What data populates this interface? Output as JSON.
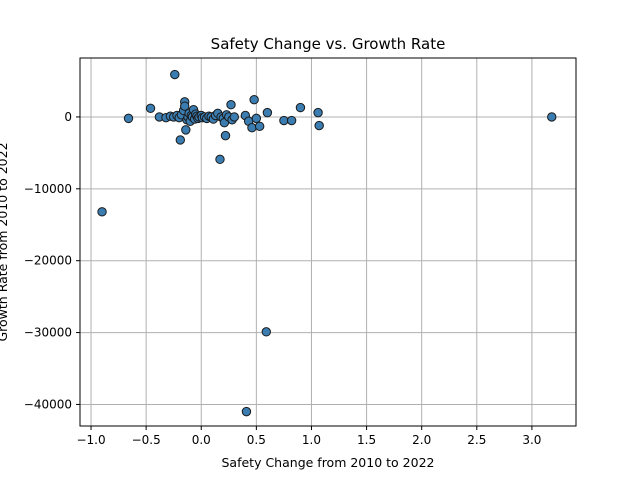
{
  "chart_data": {
    "type": "scatter",
    "title": "Safety Change vs. Growth Rate",
    "xlabel": "Safety Change from 2010 to 2022",
    "ylabel": "Growth Rate from 2010 to 2022",
    "xlim": [
      -1.1,
      3.4
    ],
    "ylim": [
      -43000,
      8200
    ],
    "xticks": [
      -1.0,
      -0.5,
      0.0,
      0.5,
      1.0,
      1.5,
      2.0,
      2.5,
      3.0,
      3.5
    ],
    "xtick_labels": [
      "−1.0",
      "−0.5",
      "0.0",
      "0.5",
      "1.0",
      "1.5",
      "2.0",
      "2.5",
      "3.0"
    ],
    "yticks": [
      0,
      -10000,
      -20000,
      -30000,
      -40000
    ],
    "ytick_labels": [
      "0",
      "−10000",
      "−20000",
      "−30000",
      "−40000"
    ],
    "grid": true,
    "marker_color": "#3b7db1",
    "points": [
      {
        "x": -0.9,
        "y": -13200
      },
      {
        "x": -0.66,
        "y": -200
      },
      {
        "x": -0.46,
        "y": 1200
      },
      {
        "x": -0.38,
        "y": 0
      },
      {
        "x": -0.32,
        "y": -100
      },
      {
        "x": -0.28,
        "y": 100
      },
      {
        "x": -0.25,
        "y": 0
      },
      {
        "x": -0.24,
        "y": 5900
      },
      {
        "x": -0.22,
        "y": 200
      },
      {
        "x": -0.2,
        "y": -100
      },
      {
        "x": -0.19,
        "y": -3200
      },
      {
        "x": -0.18,
        "y": 300
      },
      {
        "x": -0.16,
        "y": 900
      },
      {
        "x": -0.15,
        "y": 2100
      },
      {
        "x": -0.15,
        "y": 1500
      },
      {
        "x": -0.14,
        "y": -1800
      },
      {
        "x": -0.13,
        "y": -400
      },
      {
        "x": -0.12,
        "y": 0
      },
      {
        "x": -0.11,
        "y": 500
      },
      {
        "x": -0.1,
        "y": -600
      },
      {
        "x": -0.09,
        "y": 200
      },
      {
        "x": -0.08,
        "y": 0
      },
      {
        "x": -0.07,
        "y": 1000
      },
      {
        "x": -0.06,
        "y": -300
      },
      {
        "x": -0.05,
        "y": 400
      },
      {
        "x": -0.04,
        "y": 100
      },
      {
        "x": -0.03,
        "y": -200
      },
      {
        "x": -0.02,
        "y": 0
      },
      {
        "x": 0.0,
        "y": 200
      },
      {
        "x": 0.01,
        "y": -100
      },
      {
        "x": 0.03,
        "y": 0
      },
      {
        "x": 0.05,
        "y": -200
      },
      {
        "x": 0.07,
        "y": 100
      },
      {
        "x": 0.09,
        "y": 0
      },
      {
        "x": 0.11,
        "y": -300
      },
      {
        "x": 0.13,
        "y": 200
      },
      {
        "x": 0.15,
        "y": 500
      },
      {
        "x": 0.17,
        "y": -5900
      },
      {
        "x": 0.18,
        "y": 0
      },
      {
        "x": 0.2,
        "y": -200
      },
      {
        "x": 0.21,
        "y": -800
      },
      {
        "x": 0.22,
        "y": -2600
      },
      {
        "x": 0.23,
        "y": 300
      },
      {
        "x": 0.25,
        "y": 0
      },
      {
        "x": 0.27,
        "y": 1700
      },
      {
        "x": 0.28,
        "y": -400
      },
      {
        "x": 0.3,
        "y": 0
      },
      {
        "x": 0.4,
        "y": 200
      },
      {
        "x": 0.41,
        "y": -41000
      },
      {
        "x": 0.43,
        "y": -600
      },
      {
        "x": 0.46,
        "y": -1500
      },
      {
        "x": 0.48,
        "y": 2400
      },
      {
        "x": 0.5,
        "y": -200
      },
      {
        "x": 0.53,
        "y": -1300
      },
      {
        "x": 0.59,
        "y": -29900
      },
      {
        "x": 0.6,
        "y": 600
      },
      {
        "x": 0.75,
        "y": -500
      },
      {
        "x": 0.82,
        "y": -500
      },
      {
        "x": 0.9,
        "y": 1300
      },
      {
        "x": 1.06,
        "y": 600
      },
      {
        "x": 1.07,
        "y": -1200
      },
      {
        "x": 3.18,
        "y": 0
      }
    ]
  }
}
